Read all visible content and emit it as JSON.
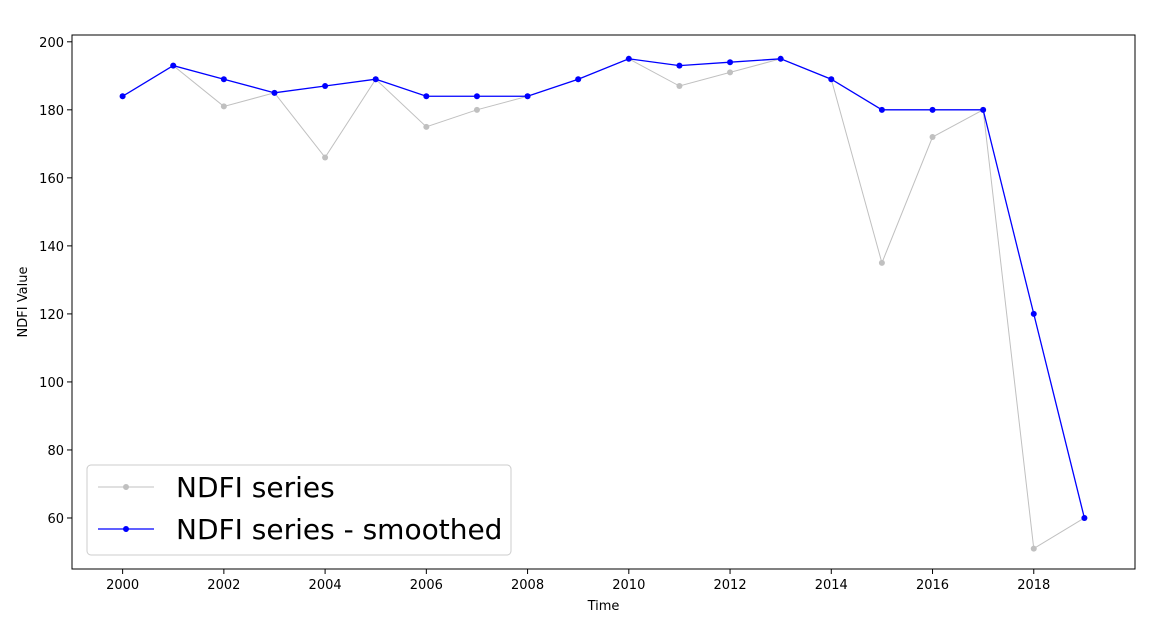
{
  "chart_data": {
    "type": "line",
    "title": "",
    "xlabel": "Time",
    "ylabel": "NDFI Value",
    "xlim": [
      1999,
      2020
    ],
    "ylim": [
      45,
      202
    ],
    "x_ticks": [
      2000,
      2002,
      2004,
      2006,
      2008,
      2010,
      2012,
      2014,
      2016,
      2018
    ],
    "y_ticks": [
      60,
      80,
      100,
      120,
      140,
      160,
      180,
      200
    ],
    "grid": false,
    "legend": "lower-left",
    "x": [
      2000,
      2001,
      2002,
      2003,
      2004,
      2005,
      2006,
      2007,
      2008,
      2009,
      2010,
      2011,
      2012,
      2013,
      2014,
      2015,
      2016,
      2017,
      2018,
      2019
    ],
    "series": [
      {
        "name": "NDFI series",
        "color": "#c0c0c0",
        "values": [
          184,
          193,
          181,
          185,
          166,
          189,
          175,
          180,
          184,
          189,
          195,
          187,
          191,
          195,
          189,
          135,
          172,
          180,
          51,
          60
        ]
      },
      {
        "name": "NDFI series - smoothed",
        "color": "#0000ff",
        "values": [
          184,
          193,
          189,
          185,
          187,
          189,
          184,
          184,
          184,
          189,
          195,
          193,
          194,
          195,
          189,
          180,
          180,
          180,
          120,
          60
        ]
      }
    ]
  }
}
